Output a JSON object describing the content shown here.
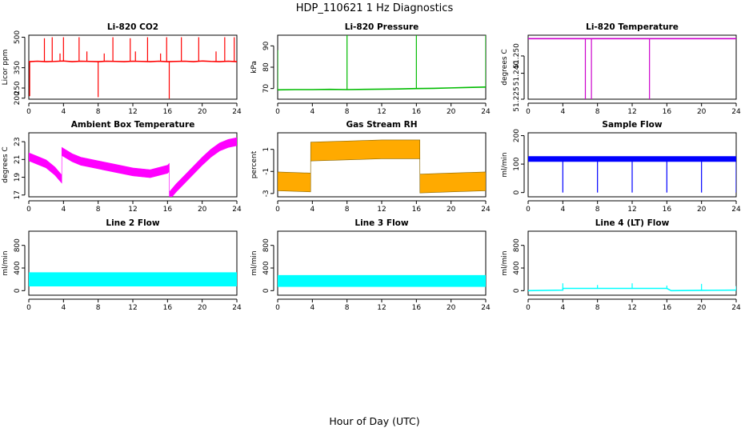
{
  "figure": {
    "title": "HDP_110621  1 Hz Diagnostics",
    "xlabel": "Hour of Day (UTC)"
  },
  "chart_data": [
    {
      "id": "co2",
      "type": "line",
      "title": "Li-820 CO2",
      "ylabel": "Licor ppm",
      "color": "#ff0000",
      "xlim": [
        0,
        24
      ],
      "ylim": [
        195,
        510
      ],
      "x_ticks": [
        "0",
        "4",
        "8",
        "12",
        "16",
        "20",
        "24"
      ],
      "y_ticks": [
        {
          "value": 200,
          "label": "200"
        },
        {
          "value": 250,
          "label": "250"
        },
        {
          "value": 350,
          "label": "350"
        },
        {
          "value": 500,
          "label": "500"
        }
      ],
      "series": [
        {
          "name": "CO2",
          "x": [
            0,
            1,
            2,
            3,
            4,
            5,
            6,
            7,
            8,
            9,
            10,
            11,
            12,
            13,
            14,
            15,
            16,
            17,
            18,
            19,
            20,
            21,
            22,
            23,
            24
          ],
          "y": [
            380,
            382,
            380,
            381,
            383,
            380,
            382,
            381,
            380,
            382,
            381,
            380,
            382,
            381,
            380,
            382,
            380,
            381,
            382,
            380,
            383,
            381,
            380,
            382,
            380
          ]
        }
      ],
      "spikes": [
        {
          "x": 0.1,
          "y": 210
        },
        {
          "x": 1.8,
          "y": 495
        },
        {
          "x": 2.7,
          "y": 500
        },
        {
          "x": 3.6,
          "y": 420
        },
        {
          "x": 4.0,
          "y": 500
        },
        {
          "x": 5.8,
          "y": 500
        },
        {
          "x": 6.7,
          "y": 430
        },
        {
          "x": 8.0,
          "y": 205
        },
        {
          "x": 8.7,
          "y": 420
        },
        {
          "x": 9.7,
          "y": 500
        },
        {
          "x": 11.7,
          "y": 495
        },
        {
          "x": 12.3,
          "y": 430
        },
        {
          "x": 13.7,
          "y": 500
        },
        {
          "x": 15.2,
          "y": 420
        },
        {
          "x": 15.9,
          "y": 500
        },
        {
          "x": 16.2,
          "y": 198
        },
        {
          "x": 17.6,
          "y": 500
        },
        {
          "x": 19.6,
          "y": 500
        },
        {
          "x": 21.6,
          "y": 430
        },
        {
          "x": 22.6,
          "y": 500
        },
        {
          "x": 23.7,
          "y": 500
        }
      ]
    },
    {
      "id": "pressure",
      "type": "line",
      "title": "Li-820 Pressure",
      "ylabel": "kPa",
      "color": "#00bb00",
      "xlim": [
        0,
        24
      ],
      "ylim": [
        65,
        95
      ],
      "x_ticks": [
        "0",
        "4",
        "8",
        "12",
        "16",
        "20",
        "24"
      ],
      "y_ticks": [
        {
          "value": 70,
          "label": "70"
        },
        {
          "value": 80,
          "label": "80"
        },
        {
          "value": 90,
          "label": "90"
        }
      ],
      "series": [
        {
          "name": "Pressure",
          "x": [
            0,
            2,
            4,
            6,
            8,
            10,
            12,
            14,
            16,
            18,
            20,
            22,
            24
          ],
          "y": [
            69.4,
            69.5,
            69.5,
            69.6,
            69.5,
            69.6,
            69.7,
            69.8,
            70.0,
            70.1,
            70.3,
            70.5,
            70.7
          ]
        }
      ],
      "spikes": [
        {
          "x": 0.0,
          "y": 88
        },
        {
          "x": 8.0,
          "y": 95
        },
        {
          "x": 16.0,
          "y": 95
        },
        {
          "x": 24.0,
          "y": 95
        }
      ]
    },
    {
      "id": "licor-temp",
      "type": "line",
      "title": "Li-820 Temperature",
      "ylabel": "degrees C",
      "color": "#cc00cc",
      "xlim": [
        0,
        24
      ],
      "ylim": [
        51.225,
        51.262
      ],
      "x_ticks": [
        "0",
        "4",
        "8",
        "12",
        "16",
        "20",
        "24"
      ],
      "y_ticks": [
        {
          "value": 51.225,
          "label": "51.225"
        },
        {
          "value": 51.24,
          "label": "51.240"
        },
        {
          "value": 51.25,
          "label": "51.250"
        }
      ],
      "series": [
        {
          "name": "Temperature",
          "x": [
            0,
            24
          ],
          "y": [
            51.26,
            51.26
          ]
        }
      ],
      "spikes": [
        {
          "x": 6.6,
          "y": 51.225
        },
        {
          "x": 7.3,
          "y": 51.225
        },
        {
          "x": 14.0,
          "y": 51.225
        }
      ]
    },
    {
      "id": "ambient-temp",
      "type": "line",
      "title": "Ambient Box Temperature",
      "ylabel": "degrees C",
      "color": "#ff00ff",
      "xlim": [
        0,
        24
      ],
      "ylim": [
        16.8,
        24
      ],
      "x_ticks": [
        "0",
        "4",
        "8",
        "12",
        "16",
        "20",
        "24"
      ],
      "y_ticks": [
        {
          "value": 17,
          "label": "17"
        },
        {
          "value": 19,
          "label": "19"
        },
        {
          "value": 21,
          "label": "21"
        },
        {
          "value": 23,
          "label": "23"
        }
      ],
      "band_width": 0.9,
      "series": [
        {
          "name": "Ambient",
          "x": [
            0,
            1,
            2,
            3,
            3.8,
            3.81,
            5,
            6,
            8,
            10,
            12,
            14,
            16,
            16.2,
            16.21,
            17,
            18,
            19,
            20,
            21,
            22,
            23,
            24
          ],
          "y": [
            21.3,
            20.9,
            20.5,
            19.7,
            18.8,
            21.9,
            21.2,
            20.8,
            20.4,
            20.0,
            19.6,
            19.4,
            19.9,
            20.1,
            16.9,
            17.8,
            18.8,
            19.8,
            20.8,
            21.7,
            22.4,
            22.8,
            23.0
          ]
        }
      ],
      "spikes": []
    },
    {
      "id": "gas-rh",
      "type": "line",
      "title": "Gas Stream RH",
      "ylabel": "percent",
      "color": "#ffaa00",
      "outline_color": "#886600",
      "xlim": [
        0,
        24
      ],
      "ylim": [
        -3.3,
        2.5
      ],
      "x_ticks": [
        "0",
        "4",
        "8",
        "12",
        "16",
        "20",
        "24"
      ],
      "y_ticks": [
        {
          "value": -3,
          "label": "-3"
        },
        {
          "value": -1,
          "label": "-1"
        },
        {
          "value": 1,
          "label": "1"
        }
      ],
      "band_width": 1.7,
      "series": [
        {
          "name": "RH",
          "x": [
            0,
            3.8,
            3.81,
            8,
            12,
            16.4,
            16.41,
            20,
            24
          ],
          "y": [
            -1.9,
            -2.0,
            0.8,
            0.9,
            1.0,
            1.0,
            -2.1,
            -2.0,
            -1.9
          ]
        }
      ],
      "spikes": []
    },
    {
      "id": "sample-flow",
      "type": "line",
      "title": "Sample Flow",
      "ylabel": "ml/min",
      "color": "#0000ff",
      "xlim": [
        0,
        24
      ],
      "ylim": [
        -15,
        210
      ],
      "x_ticks": [
        "0",
        "4",
        "8",
        "12",
        "16",
        "20",
        "24"
      ],
      "y_ticks": [
        {
          "value": 0,
          "label": "0"
        },
        {
          "value": 100,
          "label": "100"
        },
        {
          "value": 200,
          "label": "200"
        }
      ],
      "band_width": 18,
      "series": [
        {
          "name": "Flow",
          "x": [
            0,
            24
          ],
          "y": [
            118,
            118
          ]
        }
      ],
      "spikes": [
        {
          "x": 4.0,
          "y": 0
        },
        {
          "x": 8.0,
          "y": 0
        },
        {
          "x": 12.0,
          "y": 0
        },
        {
          "x": 16.0,
          "y": 0
        },
        {
          "x": 20.0,
          "y": 0
        },
        {
          "x": 24.0,
          "y": 0
        }
      ]
    },
    {
      "id": "line2-flow",
      "type": "line",
      "title": "Line 2 Flow",
      "ylabel": "ml/min",
      "color": "#00ffff",
      "xlim": [
        0,
        24
      ],
      "ylim": [
        -80,
        1050
      ],
      "x_ticks": [
        "0",
        "4",
        "8",
        "12",
        "16",
        "20",
        "24"
      ],
      "y_ticks": [
        {
          "value": 0,
          "label": "0"
        },
        {
          "value": 400,
          "label": "400"
        },
        {
          "value": 800,
          "label": "800"
        }
      ],
      "band_width": 240,
      "series": [
        {
          "name": "Line 2",
          "x": [
            0,
            24
          ],
          "y": [
            200,
            200
          ]
        }
      ],
      "spikes": []
    },
    {
      "id": "line3-flow",
      "type": "line",
      "title": "Line 3 Flow",
      "ylabel": "ml/min",
      "color": "#00ffff",
      "xlim": [
        0,
        24
      ],
      "ylim": [
        -80,
        1050
      ],
      "x_ticks": [
        "0",
        "4",
        "8",
        "12",
        "16",
        "20",
        "24"
      ],
      "y_ticks": [
        {
          "value": 0,
          "label": "0"
        },
        {
          "value": 400,
          "label": "400"
        },
        {
          "value": 800,
          "label": "800"
        }
      ],
      "band_width": 200,
      "series": [
        {
          "name": "Line 3",
          "x": [
            0,
            24
          ],
          "y": [
            170,
            170
          ]
        }
      ],
      "spikes": []
    },
    {
      "id": "line4-flow",
      "type": "line",
      "title": "Line 4 (LT) Flow",
      "ylabel": "ml/min",
      "color": "#00ffff",
      "xlim": [
        0,
        24
      ],
      "ylim": [
        -80,
        1050
      ],
      "x_ticks": [
        "0",
        "4",
        "8",
        "12",
        "16",
        "20",
        "24"
      ],
      "y_ticks": [
        {
          "value": 0,
          "label": "0"
        },
        {
          "value": 400,
          "label": "400"
        },
        {
          "value": 800,
          "label": "800"
        }
      ],
      "series": [
        {
          "name": "Line 4",
          "x": [
            0,
            4,
            4.01,
            8,
            12,
            16,
            16.5,
            20,
            24
          ],
          "y": [
            0,
            10,
            40,
            40,
            40,
            40,
            0,
            5,
            10
          ]
        }
      ],
      "spikes": [
        {
          "x": 4.0,
          "y": 130
        },
        {
          "x": 8.0,
          "y": 100
        },
        {
          "x": 12.0,
          "y": 130
        },
        {
          "x": 16.0,
          "y": 90
        },
        {
          "x": 20.0,
          "y": 120
        },
        {
          "x": 24.0,
          "y": 80
        }
      ]
    }
  ]
}
